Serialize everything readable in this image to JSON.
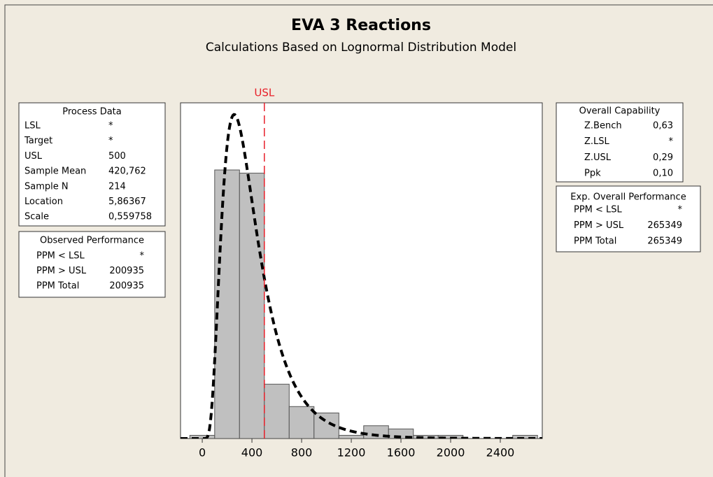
{
  "chart_data": {
    "type": "histogram",
    "title": "EVA 3 Reactions",
    "subtitle": "Calculations Based on Lognormal Distribution Model",
    "bins": [
      -100,
      100,
      300,
      500,
      700,
      900,
      1100,
      1300,
      1500,
      1700,
      1900,
      2100,
      2300,
      2500,
      2700
    ],
    "values": [
      1,
      84,
      83,
      17,
      10,
      8,
      1,
      4,
      3,
      1,
      1,
      0,
      0,
      1
    ],
    "color": "#c0c0c0",
    "curve_color": "#000000",
    "xlim": [
      -175,
      2738
    ],
    "xticks": [
      0,
      400,
      800,
      1200,
      1600,
      2000,
      2400
    ],
    "ylim": [
      0,
      105
    ],
    "usl_label": "USL",
    "usl_color": "#e8202a"
  },
  "process_data": {
    "title": "Process Data",
    "rows": [
      [
        "LSL",
        "*"
      ],
      [
        "Target",
        "*"
      ],
      [
        "USL",
        500
      ],
      [
        "Sample Mean",
        {
          "value": 420.762,
          "label": "420,762"
        }
      ],
      [
        "Sample N",
        214
      ],
      [
        "Location",
        {
          "value": 5.86367,
          "label": "5,86367"
        }
      ],
      [
        "Scale",
        {
          "value": 0.559758,
          "label": "0,559758"
        }
      ]
    ]
  },
  "observed_performance": {
    "title": "Observed Performance",
    "rows": [
      [
        "PPM < LSL",
        "*"
      ],
      [
        "PPM > USL",
        200935
      ],
      [
        "PPM Total",
        200935
      ]
    ]
  },
  "overall_capability": {
    "title": "Overall Capability",
    "rows": [
      [
        "Z.Bench",
        {
          "value": 0.63,
          "label": "0,63"
        }
      ],
      [
        "Z.LSL",
        "*"
      ],
      [
        "Z.USL",
        {
          "value": 0.29,
          "label": "0,29"
        }
      ],
      [
        "Ppk",
        {
          "value": 0.1,
          "label": "0,10"
        }
      ]
    ]
  },
  "exp_overall_performance": {
    "title": "Exp. Overall Performance",
    "rows": [
      [
        "PPM < LSL",
        "*"
      ],
      [
        "PPM > USL",
        265349
      ],
      [
        "PPM Total",
        265349
      ]
    ]
  }
}
